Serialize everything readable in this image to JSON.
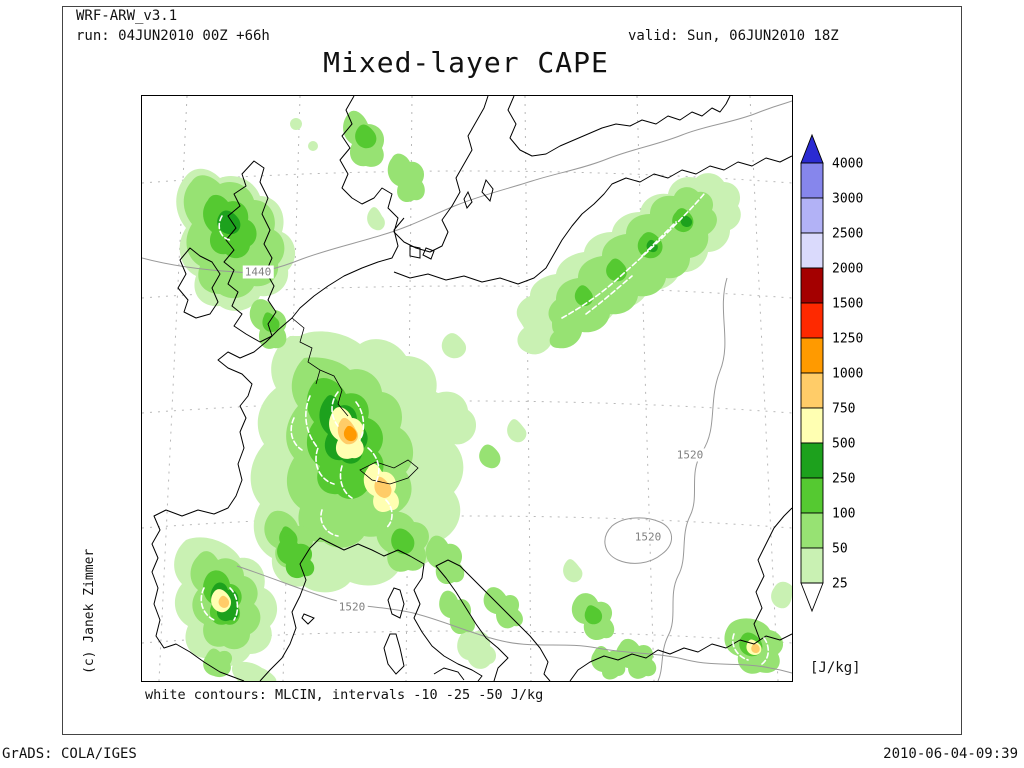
{
  "header": {
    "model": "WRF-ARW_v3.1",
    "run": "run: 04JUN2010 00Z +66h",
    "valid": "valid: Sun, 06JUN2010 18Z",
    "title": "Mixed-layer CAPE"
  },
  "map": {
    "copyright": "(c) Janek Zimmer",
    "footnote": "white contours: MLCIN, intervals -10 -25 -50 J/kg",
    "contour_labels": [
      {
        "text": "1440"
      },
      {
        "text": "1520"
      },
      {
        "text": "1520"
      },
      {
        "text": "1520"
      }
    ]
  },
  "colorbar": {
    "unit_label": "[J/kg]",
    "segments": [
      {
        "shape": "arrow-up",
        "color": "#2a2ad2",
        "label": ""
      },
      {
        "shape": "rect",
        "color": "#8686ec",
        "label": "4000"
      },
      {
        "shape": "rect",
        "color": "#b2b2f6",
        "label": "3000"
      },
      {
        "shape": "rect",
        "color": "#dadafc",
        "label": "2500"
      },
      {
        "shape": "rect",
        "color": "#a40000",
        "label": "2000"
      },
      {
        "shape": "rect",
        "color": "#fe2900",
        "label": "1500"
      },
      {
        "shape": "rect",
        "color": "#ff9a00",
        "label": "1250"
      },
      {
        "shape": "rect",
        "color": "#ffcc68",
        "label": "1000"
      },
      {
        "shape": "rect",
        "color": "#ffffb2",
        "label": "750"
      },
      {
        "shape": "rect",
        "color": "#1da11d",
        "label": "500"
      },
      {
        "shape": "rect",
        "color": "#55c931",
        "label": "250"
      },
      {
        "shape": "rect",
        "color": "#97e273",
        "label": "100"
      },
      {
        "shape": "rect",
        "color": "#c9f1b3",
        "label": "50"
      },
      {
        "shape": "arrow-down",
        "color": "#ffffff",
        "label": "25"
      }
    ]
  },
  "footer": {
    "left": "GrADS: COLA/IGES",
    "right": "2010-06-04-09:39"
  }
}
